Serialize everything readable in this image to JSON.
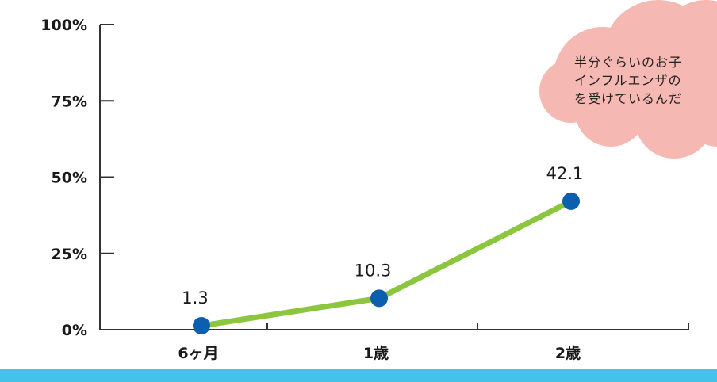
{
  "colors": {
    "line": "#8cc63e",
    "marker": "#0b5fae",
    "axis": "#333333",
    "cloud": "#f6b8b3",
    "band": "#43c3ea"
  },
  "chart_data": {
    "type": "line",
    "title": "",
    "xlabel": "",
    "ylabel": "",
    "categories": [
      "6ヶ月",
      "1歳",
      "2歳"
    ],
    "values": [
      1.3,
      10.3,
      42.1
    ],
    "data_labels": [
      "1.3",
      "10.3",
      "42.1"
    ],
    "y_ticks": [
      {
        "value": 0,
        "label": "0%"
      },
      {
        "value": 25,
        "label": "25%"
      },
      {
        "value": 50,
        "label": "50%"
      },
      {
        "value": 75,
        "label": "75%"
      },
      {
        "value": 100,
        "label": "100%"
      }
    ],
    "ylim": [
      0,
      100
    ],
    "grid": false,
    "legend": "none"
  },
  "callout": {
    "lines": [
      "半分ぐらいのお子",
      "インフルエンザの",
      "を受けているんだ"
    ]
  }
}
